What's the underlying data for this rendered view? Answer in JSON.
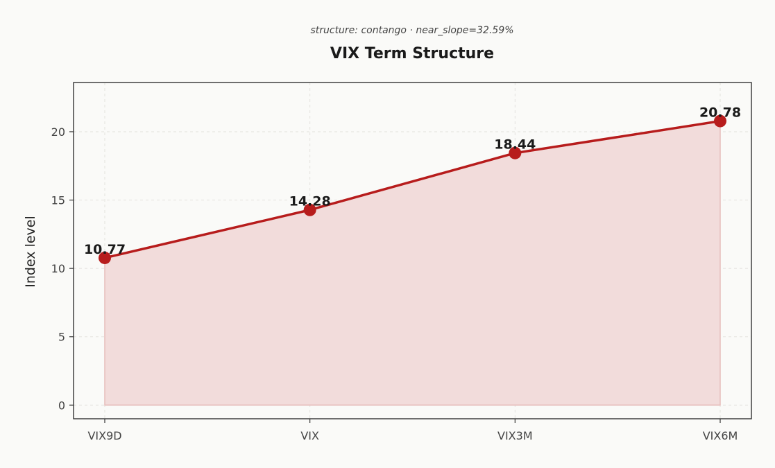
{
  "chart_data": {
    "type": "area",
    "title": "VIX Term Structure",
    "subtitle": "structure: contango · near_slope=32.59%",
    "xlabel": "",
    "ylabel": "Index level",
    "categories": [
      "VIX9D",
      "VIX",
      "VIX3M",
      "VIX6M"
    ],
    "values": [
      10.77,
      14.28,
      18.44,
      20.78
    ],
    "data_labels": [
      "10.77",
      "14.28",
      "18.44",
      "20.78"
    ],
    "ylim": [
      -1,
      23.6
    ],
    "yticks": [
      0,
      5,
      10,
      15,
      20
    ],
    "ytick_labels": [
      "0",
      "5",
      "10",
      "15",
      "20"
    ],
    "grid": true,
    "colors": {
      "line": "#b71c1c",
      "marker": "#b71c1c",
      "fill": "#f2dcdb",
      "fill_edge": "#e6bdbb"
    }
  }
}
